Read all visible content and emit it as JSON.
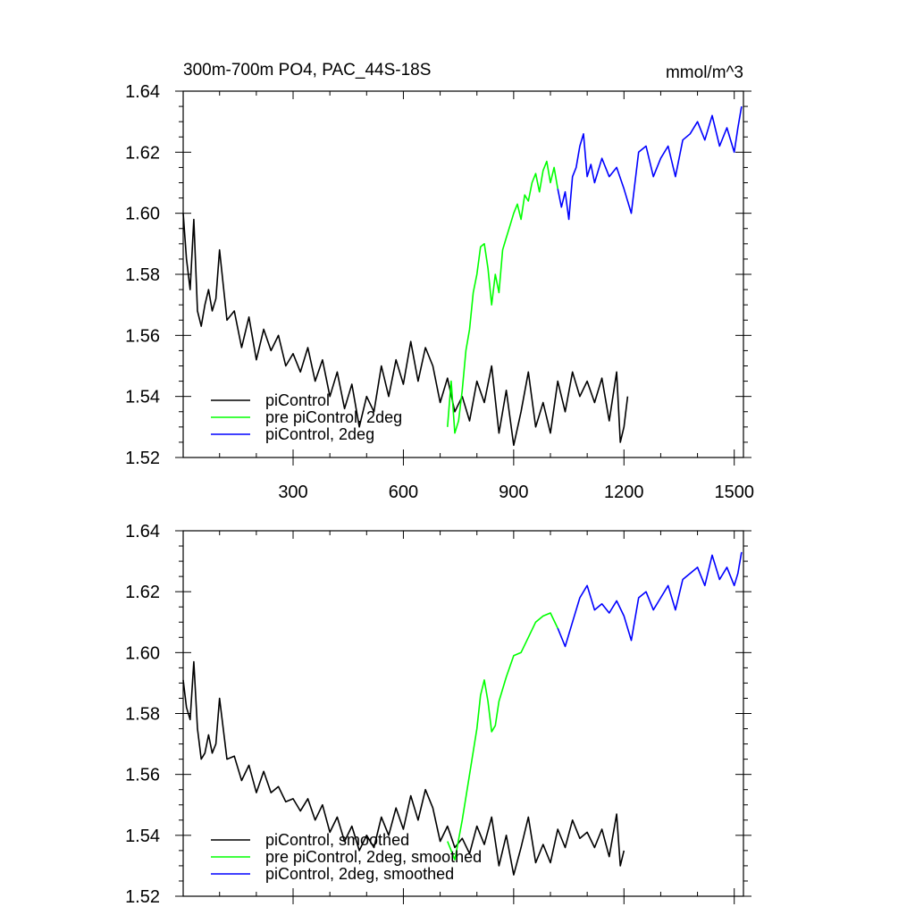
{
  "chart_data": [
    {
      "type": "line",
      "title": "300m-700m PO4, PAC_44S-18S",
      "units": "mmol/m^3",
      "xlabel": "",
      "ylabel": "",
      "xlim": [
        1,
        1525
      ],
      "ylim": [
        1.52,
        1.64
      ],
      "xticks": [
        300,
        600,
        900,
        1200,
        1500
      ],
      "show_xtick_labels": true,
      "yticks": [
        1.52,
        1.54,
        1.56,
        1.58,
        1.6,
        1.62,
        1.64
      ],
      "ytick_labels": [
        "1.52",
        "1.54",
        "1.56",
        "1.58",
        "1.60",
        "1.62",
        "1.64"
      ],
      "legend_position": "bottom-left",
      "series": [
        {
          "name": "piControl",
          "color": "#000000",
          "x": [
            1,
            10,
            20,
            30,
            40,
            50,
            60,
            70,
            80,
            90,
            100,
            120,
            140,
            160,
            180,
            200,
            220,
            240,
            260,
            280,
            300,
            320,
            340,
            360,
            380,
            400,
            420,
            440,
            460,
            480,
            500,
            520,
            540,
            560,
            580,
            600,
            620,
            640,
            660,
            680,
            700,
            720,
            740,
            760,
            780,
            800,
            820,
            840,
            860,
            880,
            900,
            920,
            940,
            960,
            980,
            1000,
            1020,
            1040,
            1060,
            1080,
            1100,
            1120,
            1140,
            1160,
            1180,
            1190,
            1200,
            1210
          ],
          "y": [
            1.6,
            1.585,
            1.575,
            1.598,
            1.568,
            1.563,
            1.57,
            1.575,
            1.568,
            1.572,
            1.588,
            1.565,
            1.568,
            1.556,
            1.566,
            1.552,
            1.562,
            1.555,
            1.56,
            1.55,
            1.554,
            1.548,
            1.556,
            1.545,
            1.552,
            1.54,
            1.548,
            1.536,
            1.544,
            1.53,
            1.54,
            1.535,
            1.55,
            1.54,
            1.552,
            1.544,
            1.558,
            1.545,
            1.556,
            1.55,
            1.538,
            1.546,
            1.535,
            1.54,
            1.532,
            1.545,
            1.538,
            1.55,
            1.528,
            1.542,
            1.524,
            1.535,
            1.548,
            1.53,
            1.538,
            1.528,
            1.545,
            1.535,
            1.548,
            1.54,
            1.545,
            1.538,
            1.546,
            1.532,
            1.548,
            1.525,
            1.53,
            1.54
          ]
        },
        {
          "name": "pre piControl, 2deg",
          "color": "#00ff00",
          "x": [
            720,
            730,
            740,
            750,
            760,
            770,
            780,
            790,
            800,
            810,
            820,
            830,
            840,
            850,
            860,
            870,
            880,
            890,
            900,
            910,
            920,
            930,
            940,
            950,
            960,
            970,
            980,
            990,
            1000,
            1010,
            1020
          ],
          "y": [
            1.53,
            1.545,
            1.528,
            1.532,
            1.542,
            1.555,
            1.562,
            1.574,
            1.58,
            1.589,
            1.59,
            1.582,
            1.57,
            1.58,
            1.574,
            1.588,
            1.592,
            1.596,
            1.6,
            1.603,
            1.598,
            1.606,
            1.604,
            1.61,
            1.613,
            1.607,
            1.614,
            1.617,
            1.61,
            1.615,
            1.608
          ]
        },
        {
          "name": "piControl, 2deg",
          "color": "#0000ff",
          "x": [
            1020,
            1030,
            1040,
            1050,
            1060,
            1070,
            1080,
            1090,
            1100,
            1110,
            1120,
            1140,
            1160,
            1180,
            1200,
            1220,
            1240,
            1260,
            1280,
            1300,
            1320,
            1340,
            1360,
            1380,
            1400,
            1420,
            1440,
            1460,
            1480,
            1500,
            1510,
            1520
          ],
          "y": [
            1.608,
            1.602,
            1.607,
            1.598,
            1.612,
            1.615,
            1.622,
            1.626,
            1.612,
            1.616,
            1.61,
            1.618,
            1.612,
            1.615,
            1.608,
            1.6,
            1.62,
            1.622,
            1.612,
            1.618,
            1.622,
            1.612,
            1.624,
            1.626,
            1.63,
            1.624,
            1.632,
            1.622,
            1.628,
            1.62,
            1.628,
            1.635
          ]
        }
      ]
    },
    {
      "type": "line",
      "title": "",
      "xlabel": "",
      "ylabel": "",
      "xlim": [
        1,
        1525
      ],
      "ylim": [
        1.52,
        1.64
      ],
      "xticks": [
        300,
        600,
        900,
        1200,
        1500
      ],
      "show_xtick_labels": false,
      "yticks": [
        1.52,
        1.54,
        1.56,
        1.58,
        1.6,
        1.62,
        1.64
      ],
      "ytick_labels": [
        "1.52",
        "1.54",
        "1.56",
        "1.58",
        "1.60",
        "1.62",
        "1.64"
      ],
      "legend_position": "bottom-left",
      "series": [
        {
          "name": "piControl, smoothed",
          "color": "#000000",
          "x": [
            1,
            10,
            20,
            30,
            40,
            50,
            60,
            70,
            80,
            90,
            100,
            120,
            140,
            160,
            180,
            200,
            220,
            240,
            260,
            280,
            300,
            320,
            340,
            360,
            380,
            400,
            420,
            440,
            460,
            480,
            500,
            520,
            540,
            560,
            580,
            600,
            620,
            640,
            660,
            680,
            700,
            720,
            740,
            760,
            780,
            800,
            820,
            840,
            860,
            880,
            900,
            920,
            940,
            960,
            980,
            1000,
            1020,
            1040,
            1060,
            1080,
            1100,
            1120,
            1140,
            1160,
            1180,
            1190,
            1200
          ],
          "y": [
            1.591,
            1.582,
            1.578,
            1.597,
            1.575,
            1.565,
            1.567,
            1.573,
            1.567,
            1.57,
            1.585,
            1.565,
            1.566,
            1.558,
            1.563,
            1.554,
            1.561,
            1.554,
            1.556,
            1.551,
            1.552,
            1.548,
            1.552,
            1.545,
            1.55,
            1.541,
            1.546,
            1.538,
            1.543,
            1.535,
            1.54,
            1.536,
            1.546,
            1.54,
            1.549,
            1.542,
            1.553,
            1.545,
            1.555,
            1.549,
            1.538,
            1.543,
            1.536,
            1.539,
            1.534,
            1.543,
            1.537,
            1.546,
            1.53,
            1.54,
            1.527,
            1.536,
            1.546,
            1.531,
            1.537,
            1.531,
            1.542,
            1.536,
            1.545,
            1.539,
            1.541,
            1.536,
            1.542,
            1.533,
            1.547,
            1.53,
            1.535
          ]
        },
        {
          "name": "pre piControl, 2deg, smoothed",
          "color": "#00ff00",
          "x": [
            720,
            740,
            760,
            780,
            800,
            810,
            820,
            830,
            840,
            850,
            860,
            880,
            900,
            920,
            940,
            960,
            980,
            1000,
            1020
          ],
          "y": [
            1.538,
            1.532,
            1.545,
            1.56,
            1.575,
            1.586,
            1.591,
            1.584,
            1.574,
            1.576,
            1.584,
            1.592,
            1.599,
            1.6,
            1.605,
            1.61,
            1.612,
            1.613,
            1.608
          ]
        },
        {
          "name": "piControl, 2deg, smoothed",
          "color": "#0000ff",
          "x": [
            1020,
            1040,
            1060,
            1080,
            1100,
            1120,
            1140,
            1160,
            1180,
            1200,
            1220,
            1240,
            1260,
            1280,
            1300,
            1320,
            1340,
            1360,
            1380,
            1400,
            1420,
            1440,
            1460,
            1480,
            1500,
            1510,
            1520
          ],
          "y": [
            1.608,
            1.602,
            1.61,
            1.618,
            1.622,
            1.614,
            1.616,
            1.613,
            1.617,
            1.612,
            1.604,
            1.618,
            1.62,
            1.614,
            1.618,
            1.622,
            1.614,
            1.624,
            1.626,
            1.628,
            1.622,
            1.632,
            1.624,
            1.628,
            1.622,
            1.626,
            1.633
          ]
        }
      ]
    }
  ]
}
